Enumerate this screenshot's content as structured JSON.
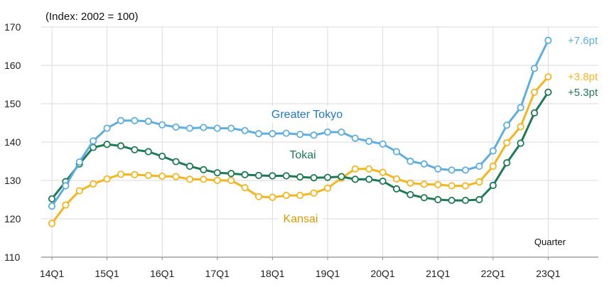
{
  "chart_data": {
    "type": "line",
    "unit_label": "(Index: 2002 = 100)",
    "xlabel": "Quarter",
    "ylim": [
      110,
      170
    ],
    "yticks": [
      110,
      120,
      130,
      140,
      150,
      160,
      170
    ],
    "x_tick_labels": [
      "14Q1",
      "15Q1",
      "16Q1",
      "17Q1",
      "18Q1",
      "19Q1",
      "20Q1",
      "21Q1",
      "22Q1",
      "23Q1"
    ],
    "x": [
      "14Q1",
      "14Q2",
      "14Q3",
      "14Q4",
      "15Q1",
      "15Q2",
      "15Q3",
      "15Q4",
      "16Q1",
      "16Q2",
      "16Q3",
      "16Q4",
      "17Q1",
      "17Q2",
      "17Q3",
      "17Q4",
      "18Q1",
      "18Q2",
      "18Q3",
      "18Q4",
      "19Q1",
      "19Q2",
      "19Q3",
      "19Q4",
      "20Q1",
      "20Q2",
      "20Q3",
      "20Q4",
      "21Q1",
      "21Q2",
      "21Q3",
      "21Q4",
      "22Q1",
      "22Q2",
      "22Q3",
      "22Q4",
      "23Q1"
    ],
    "grid": true,
    "series": [
      {
        "name": "Greater Tokyo",
        "color": "#5eaee0",
        "label_color": "#1f78c4",
        "end_label": "+7.6pt",
        "values": [
          123.3,
          128.6,
          134.8,
          140.3,
          143.6,
          145.6,
          145.6,
          145.4,
          144.5,
          143.9,
          143.6,
          143.8,
          143.6,
          143.6,
          143.0,
          142.2,
          142.2,
          142.3,
          142.0,
          141.8,
          142.6,
          142.6,
          141.0,
          140.2,
          139.5,
          137.5,
          135.0,
          134.3,
          133.0,
          132.7,
          132.7,
          133.7,
          137.7,
          144.4,
          149.0,
          159.2,
          166.5
        ]
      },
      {
        "name": "Kansai",
        "color": "#f5b51e",
        "label_color": "#d99a00",
        "end_label": "+3.8pt",
        "values": [
          118.8,
          123.6,
          127.3,
          129.1,
          130.4,
          131.6,
          131.5,
          131.3,
          131.1,
          131.0,
          130.3,
          130.3,
          130.0,
          130.0,
          128.1,
          125.8,
          125.6,
          126.1,
          126.1,
          126.7,
          128.0,
          130.6,
          133.0,
          133.0,
          132.1,
          130.4,
          129.3,
          129.0,
          128.9,
          128.6,
          128.6,
          129.6,
          133.7,
          139.8,
          144.0,
          153.0,
          157.0
        ]
      },
      {
        "name": "Tokai",
        "color": "#1e7a55",
        "label_color": "#1e7a55",
        "end_label": "+5.3pt",
        "values": [
          125.2,
          129.7,
          134.3,
          138.6,
          139.4,
          139.0,
          138.0,
          137.5,
          136.3,
          134.9,
          133.7,
          132.8,
          132.0,
          131.8,
          131.5,
          131.3,
          131.2,
          131.2,
          130.9,
          130.7,
          130.8,
          131.0,
          130.3,
          130.3,
          129.8,
          127.8,
          126.3,
          125.5,
          125.0,
          124.8,
          124.8,
          125.0,
          128.7,
          134.6,
          139.7,
          147.6,
          153.0
        ]
      }
    ]
  }
}
